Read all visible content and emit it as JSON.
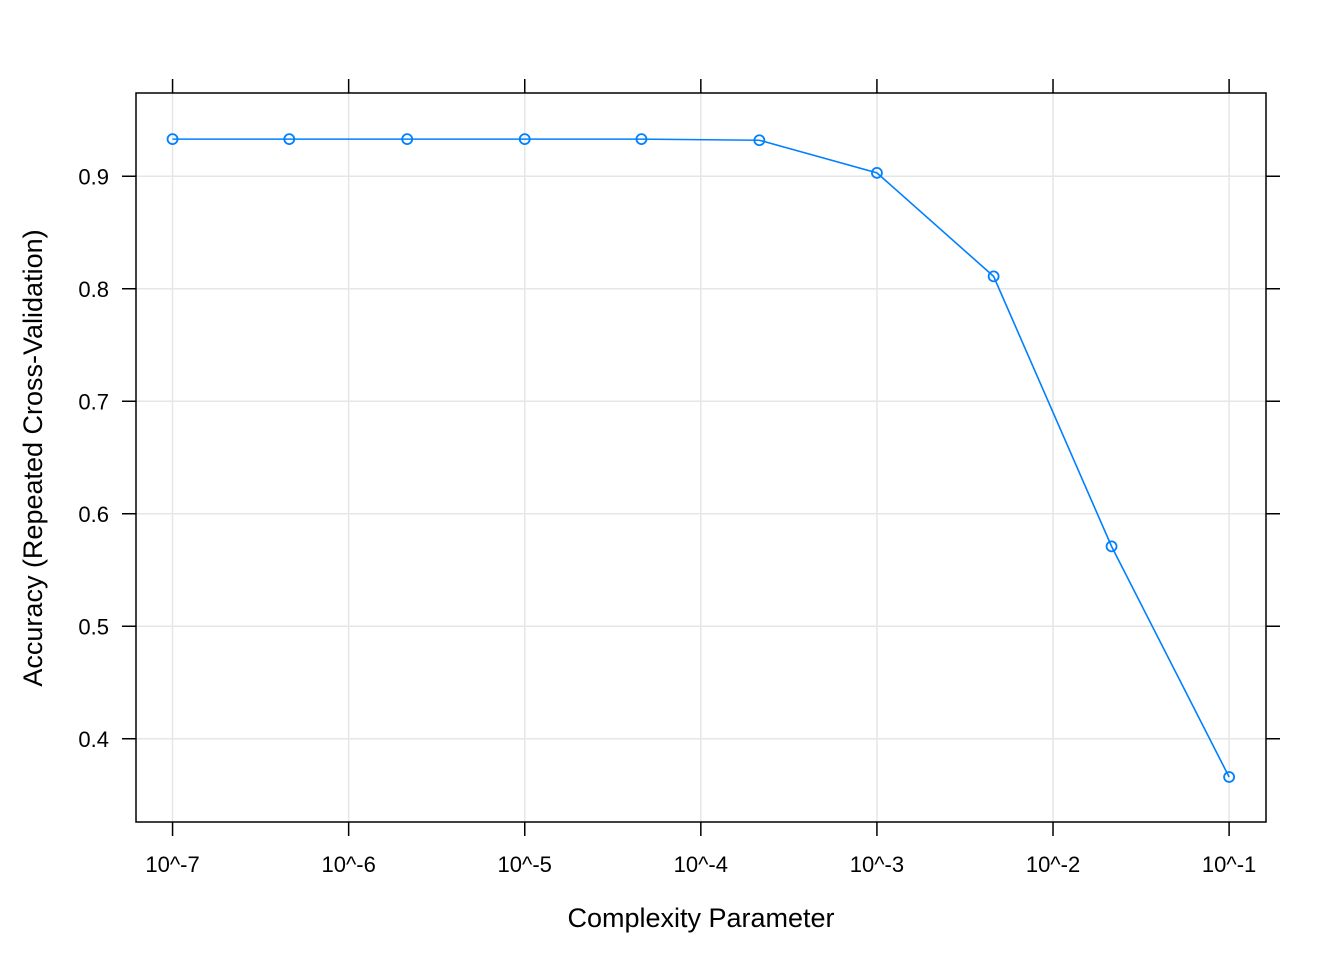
{
  "chart_data": {
    "type": "line",
    "xlabel": "Complexity Parameter",
    "ylabel": "Accuracy (Repeated Cross-Validation)",
    "x_scale": "log10",
    "x_tick_labels": [
      "10^-7",
      "10^-6",
      "10^-5",
      "10^-4",
      "10^-3",
      "10^-2",
      "10^-1"
    ],
    "x_ticks": [
      1e-07,
      1e-06,
      1e-05,
      0.0001,
      0.001,
      0.01,
      0.1
    ],
    "y_ticks": [
      0.4,
      0.5,
      0.6,
      0.7,
      0.8,
      0.9
    ],
    "y_tick_labels": [
      "0.4",
      "0.5",
      "0.6",
      "0.7",
      "0.8",
      "0.9"
    ],
    "xlim": [
      6.2e-08,
      0.162
    ],
    "ylim": [
      0.326,
      0.974
    ],
    "grid": true,
    "series": [
      {
        "x": [
          1e-07,
          4.6e-07,
          2.15e-06,
          1e-05,
          4.6e-05,
          0.000215,
          0.001,
          0.0046,
          0.0215,
          0.1
        ],
        "values": [
          0.933,
          0.933,
          0.933,
          0.933,
          0.933,
          0.932,
          0.903,
          0.811,
          0.571,
          0.366
        ],
        "color": "#0080ff"
      }
    ],
    "colors": {
      "series": "#0080ff",
      "grid": "#e6e6e6",
      "frame": "#000000"
    }
  }
}
